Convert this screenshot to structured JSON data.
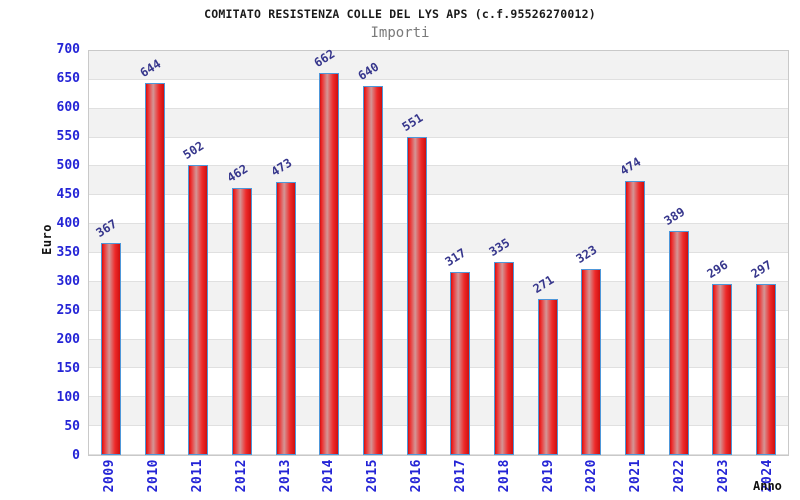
{
  "header": {
    "title": "COMITATO RESISTENZA COLLE DEL LYS APS (c.f.95526270012)",
    "subtitle": "Importi"
  },
  "chart_data": {
    "type": "bar",
    "title": "COMITATO RESISTENZA COLLE DEL LYS APS (c.f.95526270012)",
    "subtitle": "Importi",
    "xlabel": "Anno",
    "ylabel": "Euro",
    "categories": [
      "2009",
      "2010",
      "2011",
      "2012",
      "2013",
      "2014",
      "2015",
      "2016",
      "2017",
      "2018",
      "2019",
      "2020",
      "2021",
      "2022",
      "2023",
      "2024"
    ],
    "values": [
      367,
      644,
      502,
      462,
      473,
      662,
      640,
      551,
      317,
      335,
      271,
      323,
      474,
      389,
      296,
      297
    ],
    "ylim": [
      0,
      700
    ],
    "ytick_step": 50,
    "grid": "horizontal-bands-alternating",
    "legend": "none",
    "colors": {
      "bar_main": "#ee2b2b",
      "bar_dark": "#cf0f0f",
      "bar_highlight": "#d49595",
      "bar_border": "#4e97d9",
      "axis_tick_label": "#2424d6",
      "value_label": "#36368c",
      "band_gray": "#f2f2f2",
      "band_white": "#ffffff",
      "grid_line": "#e0e0e0",
      "plot_border": "#c9c9c9",
      "title_color": "#1a1a1a",
      "subtitle_color": "#7a7a7a"
    }
  }
}
